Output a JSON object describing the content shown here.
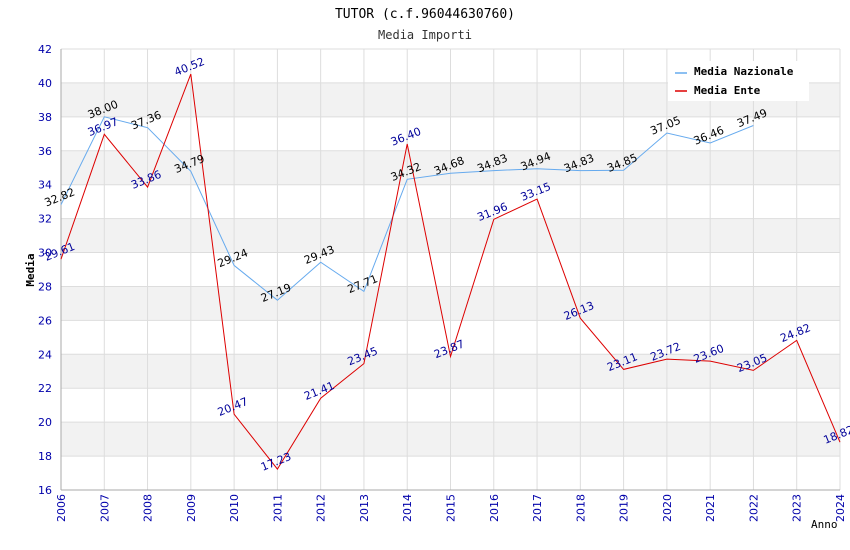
{
  "chart_data": {
    "type": "line",
    "title": "TUTOR (c.f.96044630760)",
    "subtitle": "Media Importi",
    "xlabel": "Anno",
    "ylabel": "Media",
    "ylim": [
      16,
      42
    ],
    "ystep": 2,
    "grid": true,
    "legend_position": "top-right",
    "x": [
      "2006",
      "2007",
      "2008",
      "2009",
      "2010",
      "2011",
      "2012",
      "2013",
      "2014",
      "2015",
      "2016",
      "2017",
      "2018",
      "2019",
      "2020",
      "2021",
      "2022",
      "2023",
      "2024"
    ],
    "series": [
      {
        "name": "Media Nazionale",
        "color": "#66aaee",
        "label_color": "#000000",
        "values": [
          32.82,
          38.0,
          37.36,
          34.79,
          29.24,
          27.19,
          29.43,
          27.71,
          34.32,
          34.68,
          34.83,
          34.94,
          34.83,
          34.85,
          37.05,
          36.46,
          37.49,
          null,
          null
        ],
        "labels": [
          "32.82",
          "38.00",
          "37.36",
          "34.79",
          "29.24",
          "27.19",
          "29.43",
          "27.71",
          "34.32",
          "34.68",
          "34.83",
          "34.94",
          "34.83",
          "34.85",
          "37.05",
          "36.46",
          "37.49",
          null,
          null
        ]
      },
      {
        "name": "Media Ente",
        "color": "#dd0000",
        "label_color": "#000099",
        "values": [
          29.61,
          36.97,
          33.86,
          40.52,
          20.47,
          17.23,
          21.41,
          23.45,
          36.4,
          23.87,
          31.96,
          33.15,
          26.13,
          23.11,
          23.72,
          23.6,
          23.05,
          24.82,
          18.82
        ],
        "labels": [
          "29.61",
          "36.97",
          "33.86",
          "40.52",
          "20.47",
          "17.23",
          "21.41",
          "23.45",
          "36.40",
          "23.87",
          "31.96",
          "33.15",
          "26.13",
          "23.11",
          "23.72",
          "23.60",
          "23.05",
          "24.82",
          "18.82"
        ]
      }
    ]
  }
}
